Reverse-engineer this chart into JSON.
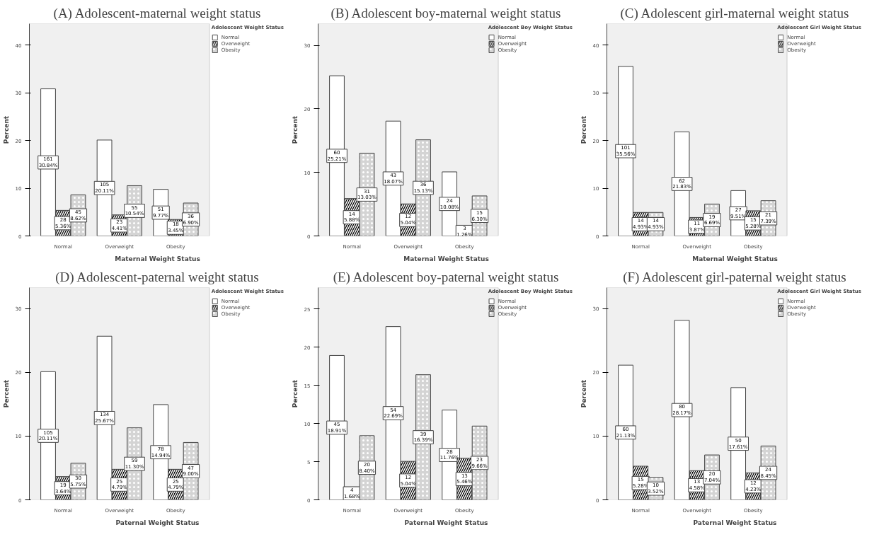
{
  "chart_data": [
    {
      "type": "bar",
      "title": "(A) Adolescent-maternal weight status",
      "xlabel": "Maternal Weight Status",
      "ylabel": "Percent",
      "legend_title": "Adolescent Weight Status",
      "legend": "right",
      "categories": [
        "Normal",
        "Overweight",
        "Obesity"
      ],
      "ylim": [
        0,
        44.5
      ],
      "yticks": [
        0,
        10,
        20,
        30,
        40
      ],
      "series": [
        {
          "name": "Normal",
          "color": "#ffffff",
          "values": [
            30.84,
            20.11,
            9.77
          ],
          "value_labels": [
            "161\n30.84%",
            "105\n20.11%",
            "51\n9.77%"
          ]
        },
        {
          "name": "Overweight",
          "color": "#000000",
          "values": [
            5.36,
            4.41,
            3.45
          ],
          "value_labels": [
            "28\n5.36%",
            "23\n4.41%",
            "18\n3.45%"
          ]
        },
        {
          "name": "Obesity",
          "color": "#d4d4d4",
          "values": [
            8.62,
            10.54,
            6.9
          ],
          "value_labels": [
            "45\n8.62%",
            "55\n10.54%",
            "36\n6.90%"
          ]
        }
      ]
    },
    {
      "type": "bar",
      "title": "(B) Adolescent boy-maternal weight status",
      "xlabel": "Maternal Weight Status",
      "ylabel": "Percent",
      "legend_title": "Adolescent Boy Weight Status",
      "legend": "right",
      "categories": [
        "Normal",
        "Overweight",
        "Obesity"
      ],
      "ylim": [
        0,
        33.4
      ],
      "yticks": [
        0,
        10,
        20,
        30
      ],
      "series": [
        {
          "name": "Normal",
          "color": "#ffffff",
          "values": [
            25.21,
            18.07,
            10.08
          ],
          "value_labels": [
            "60\n25.21%",
            "43\n18.07%",
            "24\n10.08%"
          ]
        },
        {
          "name": "Overweight",
          "color": "#000000",
          "values": [
            5.88,
            5.04,
            1.26
          ],
          "value_labels": [
            "14\n5.88%",
            "12\n5.04%",
            "3\n1.26%"
          ]
        },
        {
          "name": "Obesity",
          "color": "#d4d4d4",
          "values": [
            13.03,
            15.13,
            6.3
          ],
          "value_labels": [
            "31\n13.03%",
            "36\n15.13%",
            "15\n6.30%"
          ]
        }
      ]
    },
    {
      "type": "bar",
      "title": "(C) Adolescent girl-maternal weight status",
      "xlabel": "Maternal Weight Status",
      "ylabel": "Percent",
      "legend_title": "Adolescent Girl Weight Status",
      "legend": "right",
      "categories": [
        "Normal",
        "Overweight",
        "Obesity"
      ],
      "ylim": [
        0,
        44.5
      ],
      "yticks": [
        0,
        10,
        20,
        30,
        40
      ],
      "series": [
        {
          "name": "Normal",
          "color": "#ffffff",
          "values": [
            35.56,
            21.83,
            9.51
          ],
          "value_labels": [
            "101\n35.56%",
            "62\n21.83%",
            "27\n9.51%"
          ]
        },
        {
          "name": "Overweight",
          "color": "#000000",
          "values": [
            4.93,
            3.87,
            5.28
          ],
          "value_labels": [
            "14\n4.93%",
            "11\n3.87%",
            "15\n5.28%"
          ]
        },
        {
          "name": "Obesity",
          "color": "#d4d4d4",
          "values": [
            4.93,
            6.69,
            7.39
          ],
          "value_labels": [
            "14\n4.93%",
            "19\n6.69%",
            "21\n7.39%"
          ]
        }
      ]
    },
    {
      "type": "bar",
      "title": "(D) Adolescent-paternal weight status",
      "xlabel": "Paternal Weight Status",
      "ylabel": "Percent",
      "legend_title": "Adolescent Weight Status",
      "legend": "right",
      "categories": [
        "Normal",
        "Overweight",
        "Obesity"
      ],
      "ylim": [
        0,
        33.3
      ],
      "yticks": [
        0,
        10,
        20,
        30
      ],
      "series": [
        {
          "name": "Normal",
          "color": "#ffffff",
          "values": [
            20.11,
            25.67,
            14.94
          ],
          "value_labels": [
            "105\n20.11%",
            "134\n25.67%",
            "78\n14.94%"
          ]
        },
        {
          "name": "Overweight",
          "color": "#000000",
          "values": [
            3.64,
            4.79,
            4.79
          ],
          "value_labels": [
            "19\n3.64%",
            "25\n4.79%",
            "25\n4.79%"
          ]
        },
        {
          "name": "Obesity",
          "color": "#d4d4d4",
          "values": [
            5.75,
            11.3,
            9.0
          ],
          "value_labels": [
            "30\n5.75%",
            "59\n11.30%",
            "47\n9.00%"
          ]
        }
      ]
    },
    {
      "type": "bar",
      "title": "(E) Adolescent boy-paternal weight status",
      "xlabel": "Paternal Weight Status",
      "ylabel": "Percent",
      "legend_title": "Adolescent Boy Weight Status",
      "legend": "right",
      "categories": [
        "Normal",
        "Overweight",
        "Obesity"
      ],
      "ylim": [
        0,
        27.8
      ],
      "yticks": [
        0,
        5,
        10,
        15,
        20,
        25
      ],
      "series": [
        {
          "name": "Normal",
          "color": "#ffffff",
          "values": [
            18.91,
            22.69,
            11.76
          ],
          "value_labels": [
            "45\n18.91%",
            "54\n22.69%",
            "28\n11.76%"
          ]
        },
        {
          "name": "Overweight",
          "color": "#000000",
          "values": [
            1.68,
            5.04,
            5.46
          ],
          "value_labels": [
            "4\n1.68%",
            "12\n5.04%",
            "13\n5.46%"
          ]
        },
        {
          "name": "Obesity",
          "color": "#d4d4d4",
          "values": [
            8.4,
            16.39,
            9.66
          ],
          "value_labels": [
            "20\n8.40%",
            "39\n16.39%",
            "23\n9.66%"
          ]
        }
      ]
    },
    {
      "type": "bar",
      "title": "(F) Adolescent girl-paternal weight status",
      "xlabel": "Paternal Weight Status",
      "ylabel": "Percent",
      "legend_title": "Adolescent Girl Weight Status",
      "legend": "right",
      "categories": [
        "Normal",
        "Overweight",
        "Obesity"
      ],
      "ylim": [
        0,
        33.3
      ],
      "yticks": [
        0,
        10,
        20,
        30
      ],
      "series": [
        {
          "name": "Normal",
          "color": "#ffffff",
          "values": [
            21.13,
            28.17,
            17.61
          ],
          "value_labels": [
            "60\n21.13%",
            "80\n28.17%",
            "50\n17.61%"
          ]
        },
        {
          "name": "Overweight",
          "color": "#000000",
          "values": [
            5.28,
            4.58,
            4.23
          ],
          "value_labels": [
            "15\n5.28%",
            "13\n4.58%",
            "12\n4.23%"
          ]
        },
        {
          "name": "Obesity",
          "color": "#d4d4d4",
          "values": [
            3.52,
            7.04,
            8.45
          ],
          "value_labels": [
            "10\n3.52%",
            "20\n7.04%",
            "24\n8.45%"
          ]
        }
      ]
    }
  ]
}
